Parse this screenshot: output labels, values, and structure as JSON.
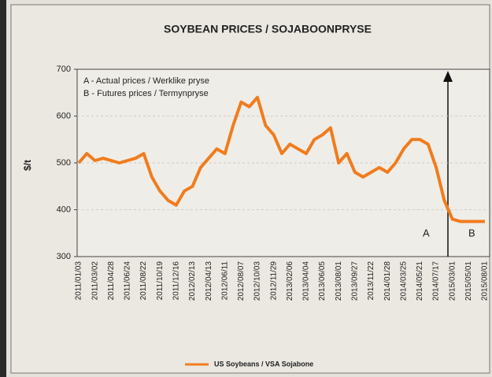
{
  "chart_data": {
    "type": "line",
    "title": "SOYBEAN PRICES / SOJABOONPRYSE",
    "y_label": "$/t",
    "annotations": [
      "A - Actual prices / Werklike pryse",
      "B - Futures prices / Termynpryse",
      "A",
      "B"
    ],
    "categories": [
      "2011/01/03",
      null,
      "2011/03/02",
      null,
      "2011/04/28",
      null,
      "2011/06/24",
      null,
      "2011/08/22",
      null,
      "2011/10/19",
      null,
      "2011/12/16",
      null,
      "2012/02/13",
      null,
      "2012/04/13",
      null,
      "2012/06/11",
      null,
      "2012/08/07",
      null,
      "2012/10/03",
      null,
      "2012/11/29",
      null,
      "2013/02/06",
      null,
      "2013/04/04",
      null,
      "2013/06/05",
      null,
      "2013/08/01",
      null,
      "2013/09/27",
      null,
      "2013/11/22",
      null,
      "2014/01/28",
      null,
      "2014/03/25",
      null,
      "2014/05/21",
      null,
      "2014/07/17",
      null,
      "2015/03/01",
      null,
      "2015/05/01",
      null,
      "2015/08/01"
    ],
    "series": [
      {
        "name": "US Soybeans / VSA Sojabone",
        "color": "#f07c1e",
        "values": [
          500,
          520,
          505,
          510,
          505,
          500,
          505,
          510,
          520,
          470,
          440,
          420,
          410,
          440,
          450,
          490,
          510,
          530,
          520,
          580,
          630,
          620,
          640,
          580,
          560,
          520,
          540,
          530,
          520,
          550,
          560,
          575,
          500,
          520,
          480,
          470,
          480,
          490,
          480,
          500,
          530,
          550,
          550,
          540,
          490,
          420,
          380,
          375,
          375,
          375,
          375
        ]
      }
    ],
    "ylim": [
      300,
      700
    ],
    "yticks": [
      300,
      400,
      500,
      600,
      700
    ],
    "grid": true
  }
}
